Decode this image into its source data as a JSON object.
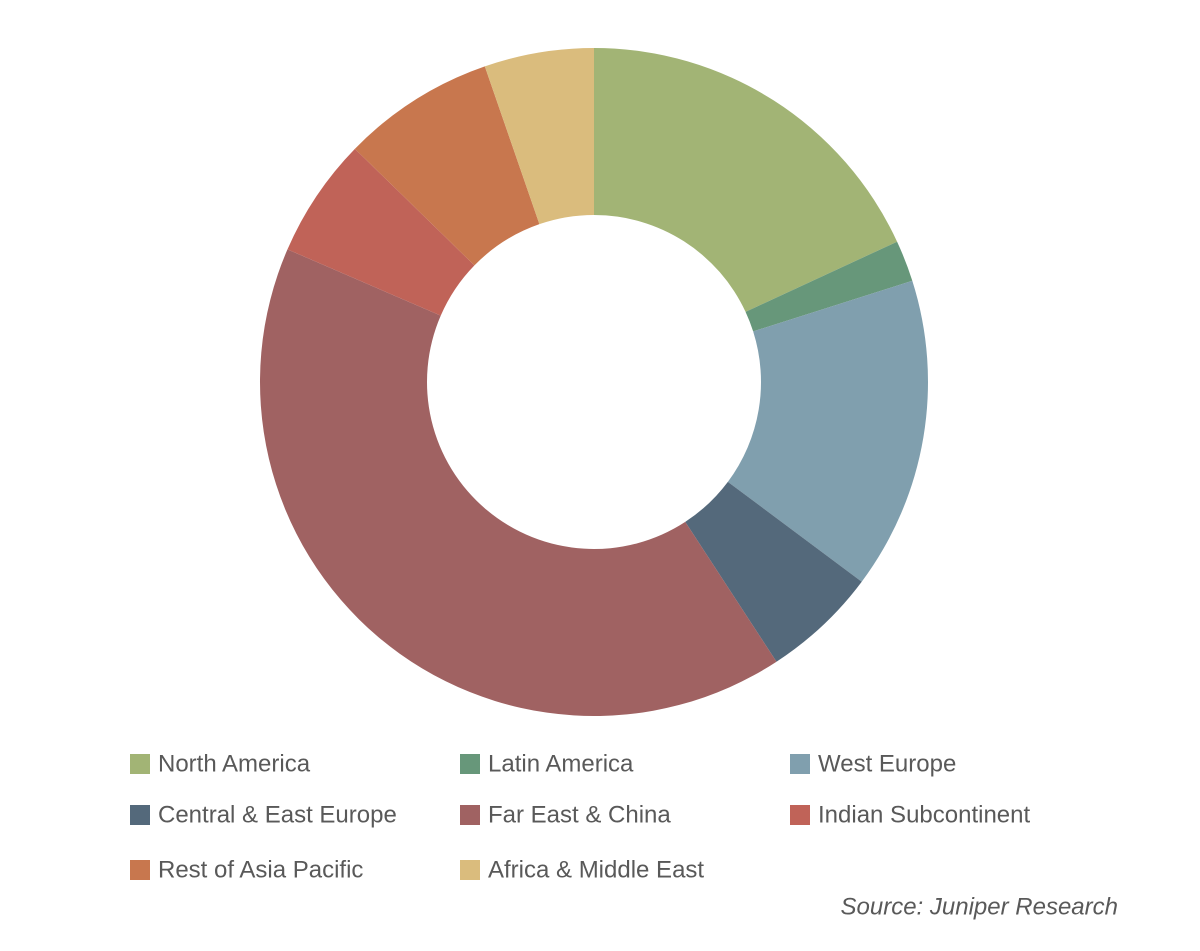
{
  "chart_data": {
    "type": "donut",
    "categories": [
      "North America",
      "Latin America",
      "West Europe",
      "Central & East Europe",
      "Far East & China",
      "Indian Subcontinent",
      "Rest of Asia Pacific",
      "Africa & Middle East"
    ],
    "values": [
      18.1,
      2.0,
      15.1,
      5.6,
      40.7,
      5.8,
      7.4,
      5.3
    ],
    "colors": [
      "#a2b475",
      "#67977a",
      "#809fae",
      "#54697b",
      "#a06262",
      "#c06358",
      "#c8774e",
      "#dabc7d"
    ],
    "source": "Source: Juniper Research"
  }
}
